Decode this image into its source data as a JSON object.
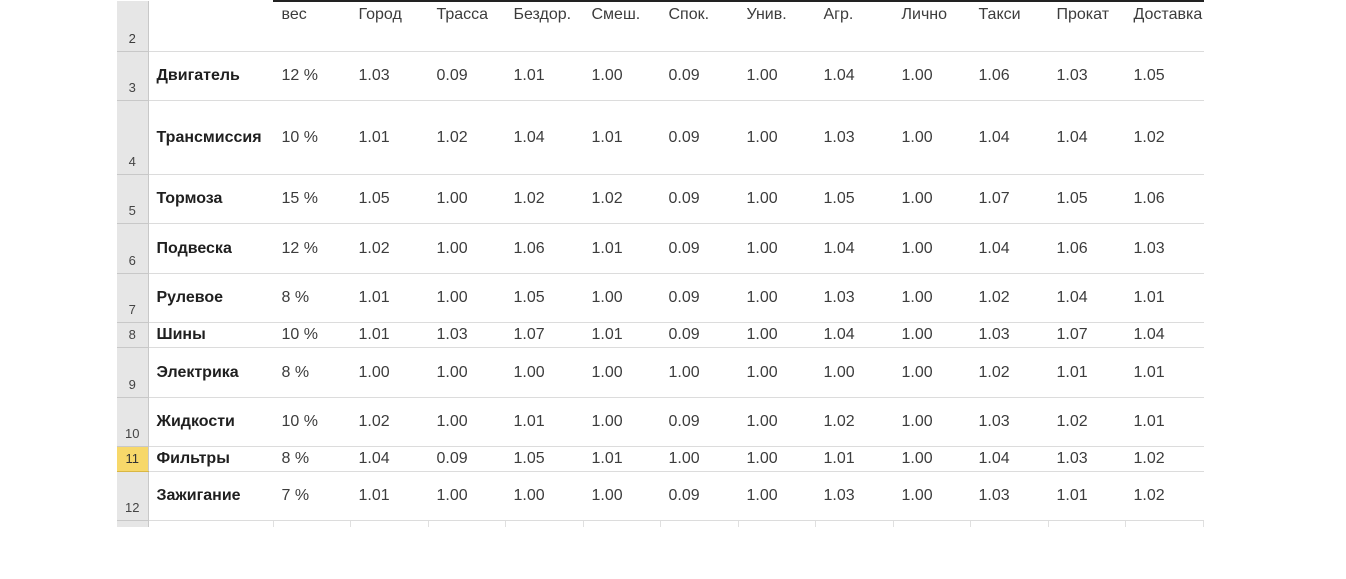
{
  "columns": [
    "",
    "вес",
    "Город",
    "Трасса",
    "Бездор.",
    "Смеш.",
    "Спок.",
    "Унив.",
    "Агр.",
    "Лично",
    "Такси",
    "Прокат",
    "Доставка"
  ],
  "header_row_number": "2",
  "rows": [
    {
      "num": "3",
      "name": "Двигатель",
      "weight": "12 %",
      "values": [
        "1.03",
        "0.09",
        "1.01",
        "1.00",
        "0.09",
        "1.00",
        "1.04",
        "1.00",
        "1.06",
        "1.03",
        "1.05"
      ]
    },
    {
      "num": "4",
      "name": "Трансмиссия",
      "weight": "10 %",
      "values": [
        "1.01",
        "1.02",
        "1.04",
        "1.01",
        "0.09",
        "1.00",
        "1.03",
        "1.00",
        "1.04",
        "1.04",
        "1.02"
      ]
    },
    {
      "num": "5",
      "name": "Тормоза",
      "weight": "15 %",
      "values": [
        "1.05",
        "1.00",
        "1.02",
        "1.02",
        "0.09",
        "1.00",
        "1.05",
        "1.00",
        "1.07",
        "1.05",
        "1.06"
      ]
    },
    {
      "num": "6",
      "name": "Подвеска",
      "weight": "12 %",
      "values": [
        "1.02",
        "1.00",
        "1.06",
        "1.01",
        "0.09",
        "1.00",
        "1.04",
        "1.00",
        "1.04",
        "1.06",
        "1.03"
      ]
    },
    {
      "num": "7",
      "name": "Рулевое",
      "weight": "8 %",
      "values": [
        "1.01",
        "1.00",
        "1.05",
        "1.00",
        "0.09",
        "1.00",
        "1.03",
        "1.00",
        "1.02",
        "1.04",
        "1.01"
      ]
    },
    {
      "num": "8",
      "name": "Шины",
      "weight": "10 %",
      "values": [
        "1.01",
        "1.03",
        "1.07",
        "1.01",
        "0.09",
        "1.00",
        "1.04",
        "1.00",
        "1.03",
        "1.07",
        "1.04"
      ]
    },
    {
      "num": "9",
      "name": "Электрика",
      "weight": "8 %",
      "values": [
        "1.00",
        "1.00",
        "1.00",
        "1.00",
        "1.00",
        "1.00",
        "1.00",
        "1.00",
        "1.02",
        "1.01",
        "1.01"
      ]
    },
    {
      "num": "10",
      "name": "Жидкости",
      "weight": "10 %",
      "values": [
        "1.02",
        "1.00",
        "1.01",
        "1.00",
        "0.09",
        "1.00",
        "1.02",
        "1.00",
        "1.03",
        "1.02",
        "1.01"
      ]
    },
    {
      "num": "11",
      "name": "Фильтры",
      "weight": "8 %",
      "values": [
        "1.04",
        "0.09",
        "1.05",
        "1.01",
        "1.00",
        "1.00",
        "1.01",
        "1.00",
        "1.04",
        "1.03",
        "1.02"
      ]
    },
    {
      "num": "12",
      "name": "Зажигание",
      "weight": "7 %",
      "values": [
        "1.01",
        "1.00",
        "1.00",
        "1.00",
        "0.09",
        "1.00",
        "1.03",
        "1.00",
        "1.03",
        "1.01",
        "1.02"
      ]
    }
  ],
  "selected_row": "11",
  "colors": {
    "row_header_bg": "#e6e6e6",
    "selected_row_header_bg": "#f7d86a",
    "grid_line": "#dcdcdc"
  }
}
